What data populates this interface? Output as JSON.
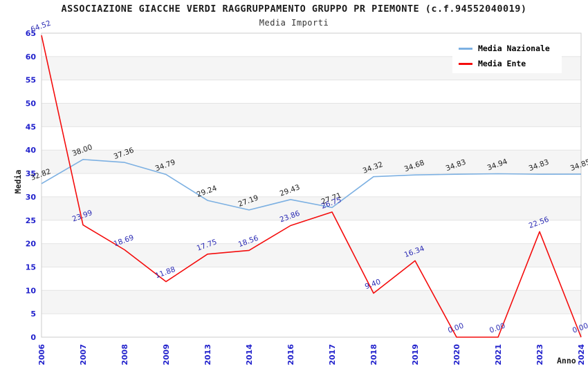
{
  "chart_data": {
    "type": "line",
    "title": "ASSOCIAZIONE GIACCHE VERDI RAGGRUPPAMENTO GRUPPO PR PIEMONTE (c.f.94552040019)",
    "subtitle": "Media Importi",
    "xlabel": "Anno",
    "ylabel": "Media",
    "categories": [
      "2006",
      "2007",
      "2008",
      "2009",
      "2013",
      "2014",
      "2016",
      "2017",
      "2018",
      "2019",
      "2020",
      "2021",
      "2023",
      "2024"
    ],
    "series": [
      {
        "name": "Media Nazionale",
        "color": "#7cb0e2",
        "label_color": "#222222",
        "values": [
          32.82,
          38.0,
          37.36,
          34.79,
          29.24,
          27.19,
          29.43,
          27.71,
          34.32,
          34.68,
          34.83,
          34.94,
          34.83,
          34.85
        ]
      },
      {
        "name": "Media Ente",
        "color": "#f40c0c",
        "label_color": "#2b2bb4",
        "values": [
          64.52,
          23.99,
          18.69,
          11.88,
          17.75,
          18.56,
          23.86,
          26.75,
          9.4,
          16.34,
          0.0,
          0.0,
          22.56,
          0.0
        ]
      }
    ],
    "ylim": [
      0,
      65
    ],
    "ytick_step": 5,
    "grid": "horizontal-bands-alternating",
    "legend_position": "top-right",
    "value_label_decimals": 2,
    "value_label_rotation_deg": -20,
    "tick_label_color": "#2222cc",
    "band_fill_color": "#f5f5f5",
    "gridline_color": "#e4e4e4",
    "plot_border_color": "#cccccc"
  }
}
